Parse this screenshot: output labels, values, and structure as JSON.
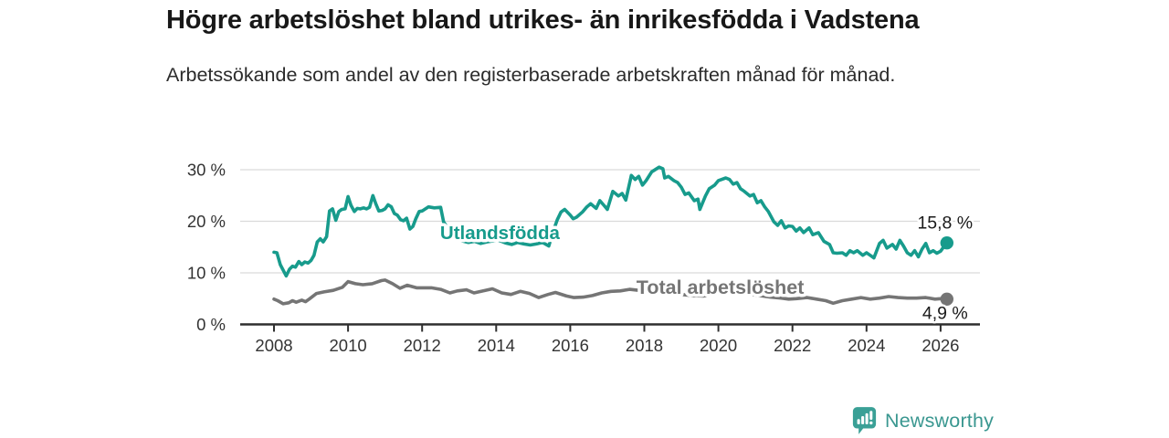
{
  "header": {
    "title": "Högre arbetslöshet bland utrikes- än inrikesfödda i Vadstena",
    "subtitle": "Arbetssökande som andel av den registerbaserade arbetskraften månad för månad."
  },
  "footer": {
    "brand_name": "Newsworthy",
    "logo_icon": "bar-chart-speech-bubble-icon"
  },
  "colors": {
    "accent_teal": "#179B8C",
    "series_gray": "#757575",
    "axis": "#2f2f2f",
    "grid": "#dadada",
    "tick_text": "#333333",
    "annotation_text": "#1a1a1a",
    "logo_teal": "#3aa096"
  },
  "chart_data": {
    "type": "line",
    "x_ticks": [
      2008,
      2010,
      2012,
      2014,
      2016,
      2018,
      2020,
      2022,
      2024,
      2026
    ],
    "y_ticks": [
      0,
      10,
      20,
      30
    ],
    "y_tick_suffix": " %",
    "xlim": [
      2007.1,
      2027.1
    ],
    "ylim": [
      0,
      32.5
    ],
    "grid": true,
    "legend": "inline-labels",
    "series": [
      {
        "name": "Utlandsfödda",
        "color": "#179B8C",
        "end_label": "15,8 %",
        "end_value": 15.8,
        "label_pos": {
          "x": 2014.1,
          "y": 17.8
        },
        "points": [
          [
            2008.0,
            14.0
          ],
          [
            2008.08,
            13.9
          ],
          [
            2008.17,
            11.6
          ],
          [
            2008.33,
            9.4
          ],
          [
            2008.42,
            10.7
          ],
          [
            2008.5,
            11.3
          ],
          [
            2008.58,
            11.1
          ],
          [
            2008.67,
            12.2
          ],
          [
            2008.75,
            11.6
          ],
          [
            2008.83,
            12.1
          ],
          [
            2008.92,
            11.9
          ],
          [
            2009.0,
            12.4
          ],
          [
            2009.08,
            13.4
          ],
          [
            2009.17,
            16.0
          ],
          [
            2009.25,
            16.6
          ],
          [
            2009.33,
            16.0
          ],
          [
            2009.42,
            17.0
          ],
          [
            2009.5,
            22.0
          ],
          [
            2009.58,
            22.4
          ],
          [
            2009.67,
            20.2
          ],
          [
            2009.75,
            21.9
          ],
          [
            2009.83,
            22.3
          ],
          [
            2009.92,
            22.4
          ],
          [
            2010.0,
            24.8
          ],
          [
            2010.08,
            23.1
          ],
          [
            2010.17,
            21.9
          ],
          [
            2010.25,
            22.5
          ],
          [
            2010.33,
            22.4
          ],
          [
            2010.42,
            22.6
          ],
          [
            2010.5,
            22.4
          ],
          [
            2010.58,
            22.7
          ],
          [
            2010.67,
            25.0
          ],
          [
            2010.75,
            23.4
          ],
          [
            2010.83,
            22.0
          ],
          [
            2010.92,
            22.1
          ],
          [
            2011.0,
            22.4
          ],
          [
            2011.08,
            23.2
          ],
          [
            2011.17,
            22.8
          ],
          [
            2011.25,
            21.5
          ],
          [
            2011.33,
            21.2
          ],
          [
            2011.42,
            20.3
          ],
          [
            2011.5,
            20.1
          ],
          [
            2011.58,
            20.6
          ],
          [
            2011.67,
            18.5
          ],
          [
            2011.75,
            19.0
          ],
          [
            2011.83,
            20.5
          ],
          [
            2011.92,
            21.9
          ],
          [
            2012.0,
            22.0
          ],
          [
            2012.17,
            22.8
          ],
          [
            2012.33,
            22.6
          ],
          [
            2012.5,
            22.7
          ],
          [
            2012.58,
            19.9
          ],
          [
            2012.75,
            18.0
          ],
          [
            2012.92,
            16.8
          ],
          [
            2013.08,
            16.2
          ],
          [
            2013.25,
            15.9
          ],
          [
            2013.42,
            16.1
          ],
          [
            2013.58,
            15.7
          ],
          [
            2013.75,
            16.0
          ],
          [
            2013.92,
            16.2
          ],
          [
            2014.08,
            16.3
          ],
          [
            2014.25,
            15.8
          ],
          [
            2014.42,
            15.5
          ],
          [
            2014.58,
            15.9
          ],
          [
            2014.75,
            15.6
          ],
          [
            2014.92,
            15.4
          ],
          [
            2015.08,
            15.6
          ],
          [
            2015.25,
            15.9
          ],
          [
            2015.42,
            15.2
          ],
          [
            2015.55,
            18.3
          ],
          [
            2015.65,
            20.3
          ],
          [
            2015.75,
            21.8
          ],
          [
            2015.85,
            22.3
          ],
          [
            2016.0,
            21.2
          ],
          [
            2016.08,
            20.5
          ],
          [
            2016.17,
            20.8
          ],
          [
            2016.33,
            21.8
          ],
          [
            2016.45,
            22.8
          ],
          [
            2016.55,
            23.4
          ],
          [
            2016.7,
            22.5
          ],
          [
            2016.8,
            24.0
          ],
          [
            2016.92,
            23.0
          ],
          [
            2017.0,
            22.3
          ],
          [
            2017.15,
            25.8
          ],
          [
            2017.3,
            24.9
          ],
          [
            2017.4,
            25.4
          ],
          [
            2017.5,
            24.1
          ],
          [
            2017.65,
            28.9
          ],
          [
            2017.75,
            28.1
          ],
          [
            2017.85,
            28.7
          ],
          [
            2017.95,
            27.0
          ],
          [
            2018.05,
            27.9
          ],
          [
            2018.2,
            29.6
          ],
          [
            2018.4,
            30.5
          ],
          [
            2018.5,
            30.2
          ],
          [
            2018.55,
            28.4
          ],
          [
            2018.65,
            28.7
          ],
          [
            2018.8,
            27.9
          ],
          [
            2018.9,
            27.5
          ],
          [
            2019.0,
            26.6
          ],
          [
            2019.1,
            25.2
          ],
          [
            2019.2,
            25.5
          ],
          [
            2019.35,
            24.0
          ],
          [
            2019.45,
            24.3
          ],
          [
            2019.5,
            22.3
          ],
          [
            2019.65,
            24.9
          ],
          [
            2019.75,
            26.3
          ],
          [
            2019.9,
            27.0
          ],
          [
            2020.0,
            27.9
          ],
          [
            2020.2,
            28.4
          ],
          [
            2020.3,
            28.1
          ],
          [
            2020.4,
            27.2
          ],
          [
            2020.5,
            27.5
          ],
          [
            2020.6,
            26.3
          ],
          [
            2020.7,
            25.8
          ],
          [
            2020.85,
            24.9
          ],
          [
            2020.95,
            25.2
          ],
          [
            2021.05,
            23.6
          ],
          [
            2021.15,
            24.0
          ],
          [
            2021.25,
            22.8
          ],
          [
            2021.35,
            21.9
          ],
          [
            2021.5,
            19.9
          ],
          [
            2021.6,
            19.2
          ],
          [
            2021.7,
            20.1
          ],
          [
            2021.8,
            18.7
          ],
          [
            2021.9,
            19.1
          ],
          [
            2022.0,
            19.0
          ],
          [
            2022.1,
            18.1
          ],
          [
            2022.2,
            18.7
          ],
          [
            2022.3,
            17.8
          ],
          [
            2022.45,
            18.7
          ],
          [
            2022.55,
            17.4
          ],
          [
            2022.7,
            17.8
          ],
          [
            2022.85,
            16.1
          ],
          [
            2023.0,
            15.5
          ],
          [
            2023.1,
            13.9
          ],
          [
            2023.2,
            13.8
          ],
          [
            2023.35,
            13.9
          ],
          [
            2023.45,
            13.4
          ],
          [
            2023.55,
            14.3
          ],
          [
            2023.65,
            13.9
          ],
          [
            2023.75,
            14.3
          ],
          [
            2023.9,
            13.4
          ],
          [
            2024.0,
            13.9
          ],
          [
            2024.1,
            13.4
          ],
          [
            2024.2,
            12.9
          ],
          [
            2024.35,
            15.7
          ],
          [
            2024.45,
            16.3
          ],
          [
            2024.55,
            14.8
          ],
          [
            2024.7,
            15.5
          ],
          [
            2024.8,
            14.6
          ],
          [
            2024.9,
            16.3
          ],
          [
            2025.0,
            15.2
          ],
          [
            2025.1,
            13.9
          ],
          [
            2025.2,
            13.4
          ],
          [
            2025.3,
            14.3
          ],
          [
            2025.4,
            13.1
          ],
          [
            2025.5,
            14.6
          ],
          [
            2025.6,
            15.7
          ],
          [
            2025.7,
            13.9
          ],
          [
            2025.8,
            14.3
          ],
          [
            2025.9,
            13.8
          ],
          [
            2026.0,
            14.2
          ],
          [
            2026.08,
            15.0
          ],
          [
            2026.17,
            15.8
          ]
        ]
      },
      {
        "name": "Total arbetslöshet",
        "color": "#757575",
        "end_label": "4,9 %",
        "end_value": 4.9,
        "label_pos": {
          "x": 2020.05,
          "y": 7.15
        },
        "points": [
          [
            2008.0,
            4.9
          ],
          [
            2008.1,
            4.6
          ],
          [
            2008.25,
            4.0
          ],
          [
            2008.4,
            4.2
          ],
          [
            2008.5,
            4.6
          ],
          [
            2008.6,
            4.3
          ],
          [
            2008.75,
            4.7
          ],
          [
            2008.85,
            4.4
          ],
          [
            2008.95,
            4.9
          ],
          [
            2009.15,
            6.0
          ],
          [
            2009.35,
            6.3
          ],
          [
            2009.6,
            6.6
          ],
          [
            2009.85,
            7.2
          ],
          [
            2010.0,
            8.3
          ],
          [
            2010.2,
            7.9
          ],
          [
            2010.4,
            7.7
          ],
          [
            2010.65,
            7.9
          ],
          [
            2010.9,
            8.5
          ],
          [
            2011.0,
            8.6
          ],
          [
            2011.2,
            7.9
          ],
          [
            2011.4,
            7.0
          ],
          [
            2011.6,
            7.6
          ],
          [
            2011.85,
            7.1
          ],
          [
            2012.05,
            7.1
          ],
          [
            2012.25,
            7.1
          ],
          [
            2012.5,
            6.8
          ],
          [
            2012.75,
            6.1
          ],
          [
            2012.95,
            6.5
          ],
          [
            2013.2,
            6.7
          ],
          [
            2013.4,
            6.1
          ],
          [
            2013.65,
            6.5
          ],
          [
            2013.9,
            6.9
          ],
          [
            2014.15,
            6.1
          ],
          [
            2014.4,
            5.8
          ],
          [
            2014.65,
            6.4
          ],
          [
            2014.9,
            6.0
          ],
          [
            2015.15,
            5.2
          ],
          [
            2015.4,
            5.8
          ],
          [
            2015.6,
            6.2
          ],
          [
            2015.9,
            5.5
          ],
          [
            2016.1,
            5.2
          ],
          [
            2016.35,
            5.3
          ],
          [
            2016.6,
            5.6
          ],
          [
            2016.85,
            6.1
          ],
          [
            2017.1,
            6.4
          ],
          [
            2017.35,
            6.5
          ],
          [
            2017.6,
            6.8
          ],
          [
            2017.85,
            6.6
          ],
          [
            2018.1,
            6.5
          ],
          [
            2018.4,
            6.3
          ],
          [
            2018.7,
            6.1
          ],
          [
            2019.0,
            5.8
          ],
          [
            2019.3,
            5.6
          ],
          [
            2019.6,
            5.5
          ],
          [
            2019.9,
            5.9
          ],
          [
            2020.2,
            6.3
          ],
          [
            2020.5,
            6.2
          ],
          [
            2020.8,
            5.9
          ],
          [
            2021.1,
            5.6
          ],
          [
            2021.4,
            5.3
          ],
          [
            2021.7,
            5.1
          ],
          [
            2021.9,
            4.9
          ],
          [
            2022.1,
            5.0
          ],
          [
            2022.4,
            5.2
          ],
          [
            2022.65,
            4.9
          ],
          [
            2022.9,
            4.6
          ],
          [
            2023.1,
            4.1
          ],
          [
            2023.35,
            4.6
          ],
          [
            2023.6,
            4.9
          ],
          [
            2023.85,
            5.2
          ],
          [
            2024.1,
            4.9
          ],
          [
            2024.35,
            5.1
          ],
          [
            2024.6,
            5.4
          ],
          [
            2024.85,
            5.2
          ],
          [
            2025.1,
            5.1
          ],
          [
            2025.35,
            5.1
          ],
          [
            2025.6,
            5.2
          ],
          [
            2025.85,
            4.9
          ],
          [
            2026.0,
            5.0
          ],
          [
            2026.17,
            4.9
          ]
        ]
      }
    ]
  }
}
